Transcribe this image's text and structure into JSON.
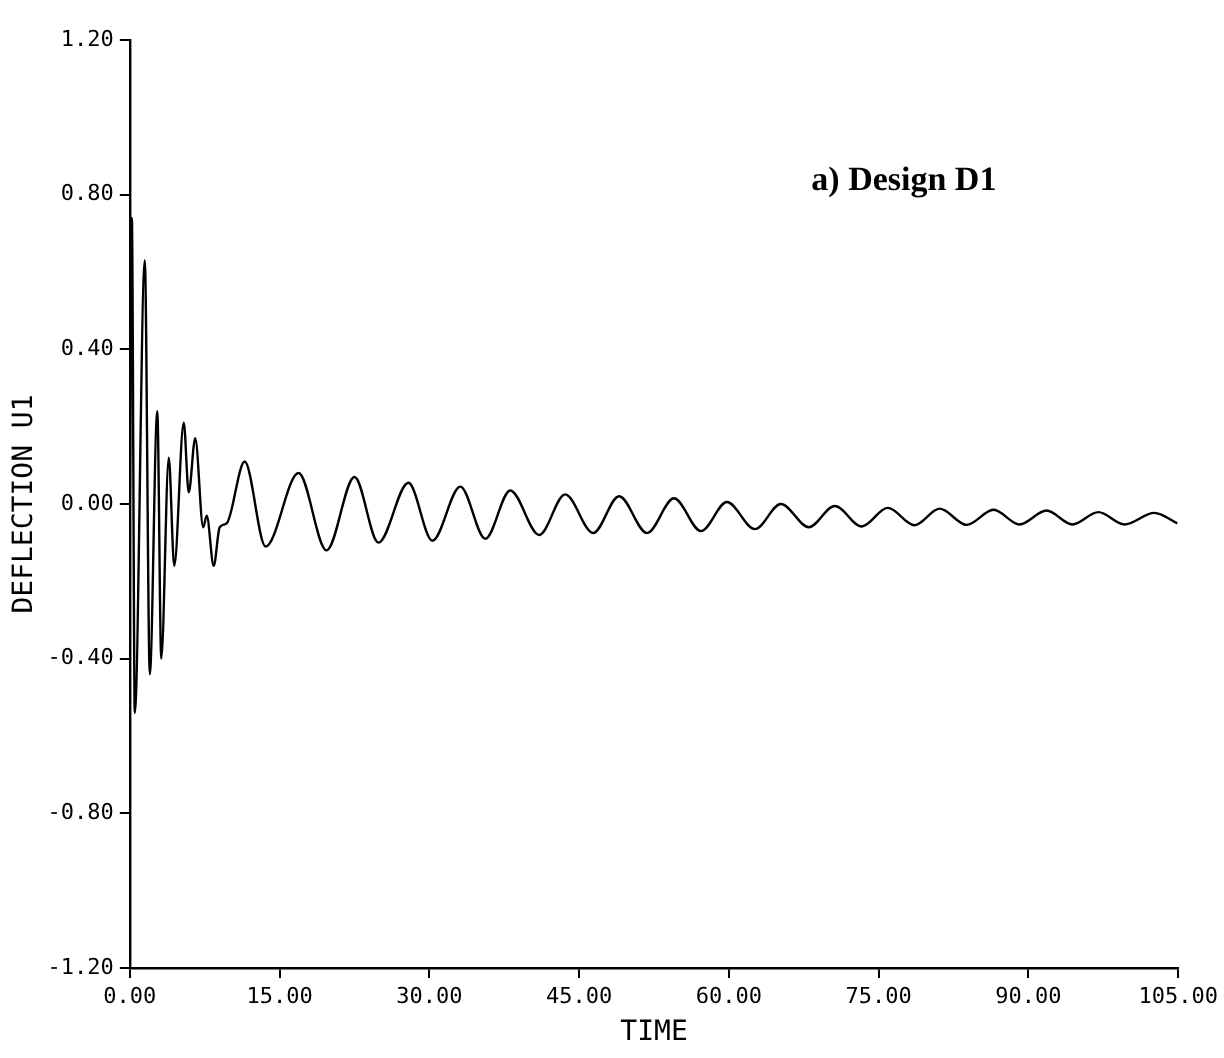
{
  "chart_data": {
    "type": "line",
    "xlabel": "TIME",
    "ylabel": "DEFLECTION U1",
    "annotations": [
      "a) Design D1"
    ],
    "xlim": [
      0,
      105
    ],
    "ylim": [
      -1.2,
      1.2
    ],
    "xticks": [
      {
        "value": 0,
        "label": "0.00"
      },
      {
        "value": 15,
        "label": "15.00"
      },
      {
        "value": 30,
        "label": "30.00"
      },
      {
        "value": 45,
        "label": "45.00"
      },
      {
        "value": 60,
        "label": "60.00"
      },
      {
        "value": 75,
        "label": "75.00"
      },
      {
        "value": 90,
        "label": "90.00"
      },
      {
        "value": 105,
        "label": "105.00"
      }
    ],
    "yticks": [
      {
        "value": -1.2,
        "label": "-1.20"
      },
      {
        "value": -0.8,
        "label": "-0.80"
      },
      {
        "value": -0.4,
        "label": "-0.40"
      },
      {
        "value": 0,
        "label": "0.00"
      },
      {
        "value": 0.4,
        "label": "0.40"
      },
      {
        "value": 0.8,
        "label": "0.80"
      },
      {
        "value": 1.2,
        "label": "1.20"
      }
    ],
    "grid": false,
    "legend": false,
    "marker": "none",
    "line_style": "solid",
    "series": [
      {
        "color": "#000000",
        "x": [
          0,
          0.2,
          0.5,
          1.5,
          2.0,
          2.75,
          3.15,
          3.9,
          4.45,
          5.4,
          5.9,
          6.55,
          7.35,
          7.7,
          8.4,
          9.0,
          9.7,
          11.5,
          13.6,
          16.9,
          19.7,
          22.5,
          24.9,
          27.9,
          30.3,
          33.1,
          35.6,
          38.1,
          41.0,
          43.6,
          46.4,
          49.0,
          51.8,
          54.5,
          57.2,
          59.8,
          62.6,
          65.2,
          68.0,
          70.6,
          73.3,
          75.9,
          78.6,
          81.1,
          83.8,
          86.5,
          89.1,
          91.8,
          94.4,
          97.0,
          99.6,
          102.6,
          104.9
        ],
        "values": [
          0,
          0.74,
          -0.54,
          0.63,
          -0.44,
          0.24,
          -0.4,
          0.12,
          -0.16,
          0.21,
          0.03,
          0.17,
          -0.06,
          -0.03,
          -0.16,
          -0.06,
          -0.05,
          0.11,
          -0.11,
          0.08,
          -0.12,
          0.07,
          -0.1,
          0.055,
          -0.095,
          0.045,
          -0.09,
          0.035,
          -0.08,
          0.025,
          -0.075,
          0.02,
          -0.075,
          0.015,
          -0.07,
          0.005,
          -0.065,
          0,
          -0.06,
          -0.005,
          -0.058,
          -0.01,
          -0.055,
          -0.012,
          -0.054,
          -0.015,
          -0.053,
          -0.017,
          -0.053,
          -0.021,
          -0.053,
          -0.023,
          -0.05
        ]
      }
    ]
  }
}
